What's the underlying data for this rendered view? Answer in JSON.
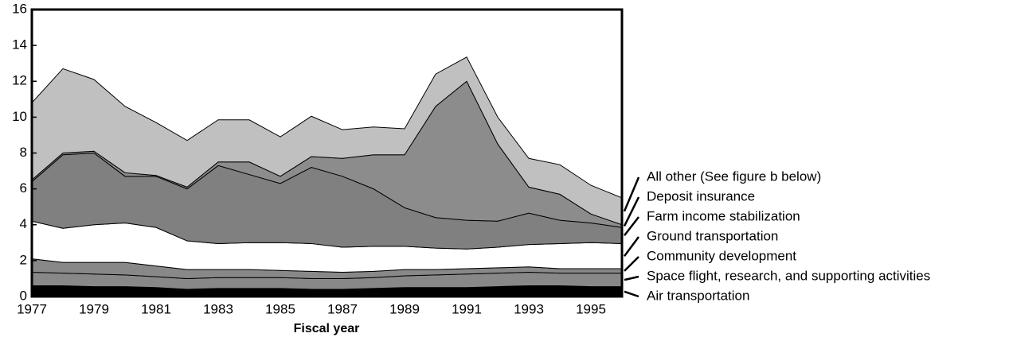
{
  "chart_data": {
    "type": "stacked_area",
    "xlabel": "Fiscal year",
    "x": [
      1977,
      1978,
      1979,
      1980,
      1981,
      1982,
      1983,
      1984,
      1985,
      1986,
      1987,
      1988,
      1989,
      1990,
      1991,
      1992,
      1993,
      1994,
      1995,
      1996
    ],
    "xlim": [
      1977,
      1996
    ],
    "xticks": [
      1977,
      1979,
      1981,
      1983,
      1985,
      1987,
      1989,
      1991,
      1993,
      1995
    ],
    "ylim": [
      0,
      16
    ],
    "yticks": [
      0,
      2,
      4,
      6,
      8,
      10,
      12,
      14,
      16
    ],
    "series": [
      {
        "name": "Air transportation",
        "color": "#000000",
        "values": [
          0.6,
          0.6,
          0.55,
          0.55,
          0.5,
          0.4,
          0.45,
          0.45,
          0.45,
          0.4,
          0.4,
          0.45,
          0.5,
          0.5,
          0.5,
          0.55,
          0.6,
          0.6,
          0.55,
          0.55
        ]
      },
      {
        "name": "Space flight, research, and supporting activities",
        "color": "#888888",
        "values": [
          0.75,
          0.7,
          0.7,
          0.65,
          0.6,
          0.6,
          0.6,
          0.6,
          0.6,
          0.6,
          0.6,
          0.6,
          0.65,
          0.7,
          0.75,
          0.75,
          0.75,
          0.7,
          0.75,
          0.75
        ]
      },
      {
        "name": "Community development",
        "color": "#888888",
        "values": [
          0.75,
          0.6,
          0.65,
          0.7,
          0.6,
          0.5,
          0.45,
          0.45,
          0.4,
          0.4,
          0.35,
          0.35,
          0.35,
          0.3,
          0.3,
          0.3,
          0.3,
          0.25,
          0.25,
          0.25
        ]
      },
      {
        "name": "Ground transportation",
        "color": "#ffffff",
        "values": [
          2.1,
          1.9,
          2.1,
          2.2,
          2.15,
          1.6,
          1.45,
          1.5,
          1.55,
          1.55,
          1.4,
          1.4,
          1.3,
          1.2,
          1.1,
          1.15,
          1.25,
          1.4,
          1.45,
          1.4
        ]
      },
      {
        "name": "Farm income stabilization",
        "color": "#808080",
        "values": [
          2.2,
          4.1,
          4.0,
          2.6,
          2.85,
          2.9,
          4.35,
          3.8,
          3.3,
          4.25,
          3.95,
          3.2,
          2.15,
          1.7,
          1.6,
          1.45,
          1.75,
          1.3,
          1.1,
          0.9
        ]
      },
      {
        "name": "Deposit insurance",
        "color": "#8c8c8c",
        "values": [
          0.1,
          0.1,
          0.1,
          0.2,
          0.05,
          0.1,
          0.2,
          0.7,
          0.4,
          0.6,
          1.0,
          1.9,
          2.95,
          6.2,
          7.75,
          4.3,
          1.45,
          1.45,
          0.5,
          0.15
        ]
      },
      {
        "name": "All other (See figure b below)",
        "color": "#c0c0c0",
        "values": [
          4.3,
          4.7,
          4.0,
          3.7,
          2.95,
          2.6,
          2.35,
          2.35,
          2.2,
          2.25,
          1.6,
          1.55,
          1.45,
          1.8,
          1.35,
          1.5,
          1.6,
          1.65,
          1.6,
          1.5
        ]
      }
    ]
  }
}
